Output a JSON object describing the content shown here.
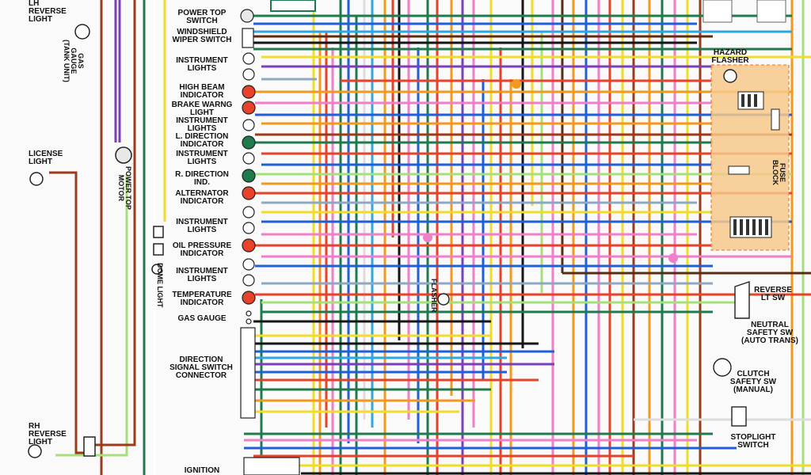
{
  "labels": {
    "lh_reverse_light": "LH\nREVERSE\nLIGHT",
    "gas_gauge_tank": "GAS\nGAUGE\n(TANK UNIT)",
    "license_light": "LICENSE\nLIGHT",
    "power_top_motor": "POWER TOP\nMOTOR",
    "rh_reverse_light": "RH\nREVERSE\nLIGHT",
    "power_top_switch": "POWER TOP\nSWITCH",
    "windshield_wiper_switch": "WINDSHIELD\nWIPER SWITCH",
    "instrument_lights_1": "INSTRUMENT\nLIGHTS",
    "high_beam_indicator": "HIGH BEAM\nINDICATOR",
    "brake_warng_light": "BRAKE WARNG\nLIGHT",
    "instrument_lights_2": "INSTRUMENT\nLIGHTS",
    "l_direction_indicator": "L. DIRECTION\nINDICATOR",
    "instrument_lights_3": "INSTRUMENT\nLIGHTS",
    "r_direction_ind": "R. DIRECTION\nIND.",
    "alternator_indicator": "ALTERNATOR\nINDICATOR",
    "instrument_lights_4": "INSTRUMENT\nLIGHTS",
    "oil_pressure_indicator": "OIL PRESSURE\nINDICATOR",
    "instrument_lights_5": "INSTRUMENT\nLIGHTS",
    "temperature_indicator": "TEMPERATURE\nINDICATOR",
    "gas_gauge": "GAS GAUGE",
    "direction_signal_switch_connector": "DIRECTION\nSIGNAL SWITCH\nCONNECTOR",
    "ignition": "IGNITION",
    "dome_light": "DOME LIGHT",
    "flasher": "FLASHER",
    "hazard_flasher": "HAZARD\nFLASHER",
    "fuse_block": "FUSE\nBLOCK",
    "reverse_lt_sw": "REVERSE\nLT SW",
    "neutral_safety_sw": "NEUTRAL\nSAFETY SW\n(AUTO TRANS)",
    "clutch_safety_sw": "CLUTCH\nSAFETY SW\n(MANUAL)",
    "stoplight_switch": "STOPLIGHT\nSWITCH"
  },
  "colors": {
    "red": "#e8432a",
    "green": "#1f7a4d",
    "blue": "#1f5fd8",
    "light_blue": "#2fa7e0",
    "orange": "#f39a1e",
    "yellow": "#f2dc2a",
    "pink": "#f07ec8",
    "purple": "#7b3fb8",
    "brown": "#9a3c1c",
    "dark_brown": "#5a2d12",
    "black": "#151515",
    "gray_blue": "#8fa8c2",
    "light_green": "#a6e07a",
    "tan": "#e7c48a",
    "dark_red": "#b0302a",
    "fuse_block_fill": "#f6c88a"
  },
  "icons": {
    "indicator_bulb": "indicator-bulb-icon",
    "ground": "ground-icon",
    "switch": "switch-icon",
    "connector": "connector-icon"
  }
}
